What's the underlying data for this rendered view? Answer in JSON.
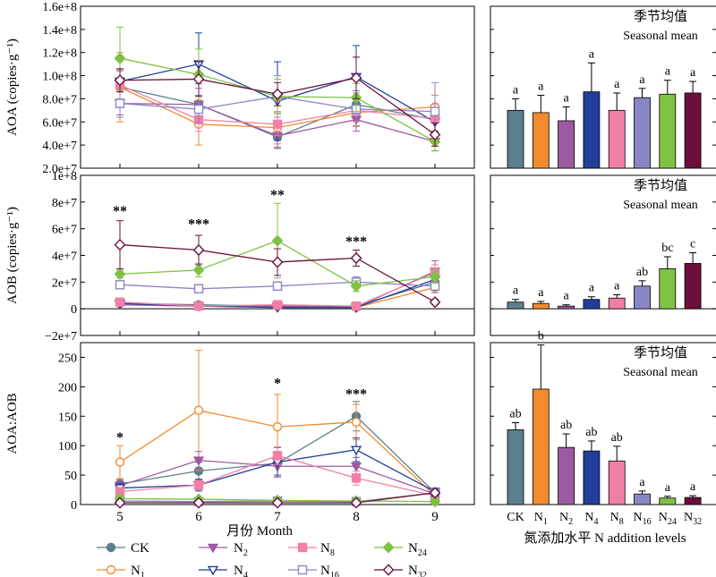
{
  "figure": {
    "x_title": "月份 Month",
    "bar_x_title": "氮添加水平 N addition levels",
    "panel_header_cn": "季节均值",
    "panel_header_en": "Seasonal mean"
  },
  "treatments": [
    {
      "key": "CK",
      "label": "CK",
      "sub": "",
      "color": "#5b7f8c",
      "marker": "circle",
      "filled": true
    },
    {
      "key": "N1",
      "label": "N",
      "sub": "1",
      "color": "#f28a2e",
      "marker": "circle",
      "filled": false
    },
    {
      "key": "N2",
      "label": "N",
      "sub": "2",
      "color": "#9e5aa0",
      "marker": "tri-down",
      "filled": true
    },
    {
      "key": "N4",
      "label": "N",
      "sub": "4",
      "color": "#1f3f9a",
      "marker": "tri-down",
      "filled": false
    },
    {
      "key": "N8",
      "label": "N",
      "sub": "8",
      "color": "#f27fa5",
      "marker": "square",
      "filled": true
    },
    {
      "key": "N16",
      "label": "N",
      "sub": "16",
      "color": "#8a86c6",
      "marker": "square",
      "filled": false
    },
    {
      "key": "N24",
      "label": "N",
      "sub": "24",
      "color": "#7fc241",
      "marker": "diamond",
      "filled": true
    },
    {
      "key": "N32",
      "label": "N",
      "sub": "32",
      "color": "#6b0f3c",
      "marker": "diamond",
      "filled": false
    }
  ],
  "chart_data": [
    {
      "type": "line",
      "panel": "AOA",
      "ylabel": "AOA (copies·g⁻¹)",
      "x": [
        5,
        6,
        7,
        8,
        9
      ],
      "xlim": [
        4.5,
        9.5
      ],
      "ylim": [
        20000000,
        160000000
      ],
      "yticks": [
        20000000,
        40000000,
        60000000,
        80000000,
        100000000,
        120000000,
        140000000,
        160000000
      ],
      "ytick_labels": [
        "2.0e+7",
        "4.0e+7",
        "6.0e+7",
        "8.0e+7",
        "1.0e+8",
        "1.2e+8",
        "1.4e+8",
        "1.6e+8"
      ],
      "series": [
        {
          "name": "CK",
          "values": [
            90000000,
            75000000,
            47000000,
            75000000,
            62000000
          ],
          "err": [
            15000000,
            18000000,
            10000000,
            12000000,
            10000000
          ]
        },
        {
          "name": "N1",
          "values": [
            90000000,
            58000000,
            55000000,
            68000000,
            73000000
          ],
          "err": [
            30000000,
            18000000,
            14000000,
            12000000,
            10000000
          ]
        },
        {
          "name": "N2",
          "values": [
            76000000,
            75000000,
            48000000,
            62000000,
            43000000
          ],
          "err": [
            10000000,
            14000000,
            10000000,
            10000000,
            8000000
          ]
        },
        {
          "name": "N4",
          "values": [
            95000000,
            110000000,
            78000000,
            99000000,
            60000000
          ],
          "err": [
            18000000,
            27000000,
            34000000,
            27000000,
            10000000
          ]
        },
        {
          "name": "N8",
          "values": [
            92000000,
            62000000,
            58000000,
            70000000,
            63000000
          ],
          "err": [
            12000000,
            10000000,
            10000000,
            10000000,
            12000000
          ]
        },
        {
          "name": "N16",
          "values": [
            76000000,
            71000000,
            82000000,
            71000000,
            69000000
          ],
          "err": [
            12000000,
            12000000,
            18000000,
            14000000,
            25000000
          ]
        },
        {
          "name": "N24",
          "values": [
            115000000,
            101000000,
            82000000,
            81000000,
            43000000
          ],
          "err": [
            27000000,
            22000000,
            15000000,
            12000000,
            8000000
          ]
        },
        {
          "name": "N32",
          "values": [
            96000000,
            97000000,
            84000000,
            98000000,
            49000000
          ],
          "err": [
            10000000,
            15000000,
            10000000,
            18000000,
            10000000
          ]
        }
      ],
      "annotations": []
    },
    {
      "type": "line",
      "panel": "AOB",
      "ylabel": "AOB (copies·g⁻¹)",
      "x": [
        5,
        6,
        7,
        8,
        9
      ],
      "xlim": [
        4.5,
        9.5
      ],
      "ylim": [
        -20000000,
        100000000
      ],
      "yticks": [
        -20000000,
        0,
        20000000,
        40000000,
        60000000,
        80000000,
        100000000
      ],
      "ytick_labels": [
        "−2e+7",
        "0",
        "2e+7",
        "4e+7",
        "6e+7",
        "8e+7",
        "1e+8"
      ],
      "series": [
        {
          "name": "CK",
          "values": [
            4000000,
            3000000,
            2000000,
            2000000,
            20000000
          ],
          "err": [
            1000000,
            1000000,
            1000000,
            1000000,
            4000000
          ]
        },
        {
          "name": "N1",
          "values": [
            4000000,
            2000000,
            2000000,
            1000000,
            16000000
          ],
          "err": [
            1000000,
            1000000,
            1000000,
            1000000,
            4000000
          ]
        },
        {
          "name": "N2",
          "values": [
            3000000,
            2000000,
            2000000,
            1000000,
            28000000
          ],
          "err": [
            1000000,
            1000000,
            1000000,
            1000000,
            8000000
          ]
        },
        {
          "name": "N4",
          "values": [
            4000000,
            2000000,
            1000000,
            1000000,
            22000000
          ],
          "err": [
            1000000,
            1000000,
            1000000,
            1000000,
            6000000
          ]
        },
        {
          "name": "N8",
          "values": [
            5000000,
            2000000,
            3000000,
            2000000,
            27000000
          ],
          "err": [
            1000000,
            1000000,
            1000000,
            1000000,
            6000000
          ]
        },
        {
          "name": "N16",
          "values": [
            18000000,
            15000000,
            17000000,
            20000000,
            17000000
          ],
          "err": [
            3000000,
            3000000,
            3000000,
            4000000,
            5000000
          ]
        },
        {
          "name": "N24",
          "values": [
            26000000,
            29000000,
            51000000,
            17000000,
            24000000
          ],
          "err": [
            3000000,
            5000000,
            28000000,
            4000000,
            5000000
          ]
        },
        {
          "name": "N32",
          "values": [
            48000000,
            44000000,
            35000000,
            38000000,
            5000000
          ],
          "err": [
            18000000,
            11000000,
            10000000,
            6000000,
            2000000
          ]
        }
      ],
      "annotations": [
        {
          "x": 5,
          "text": "**",
          "y": 70000000
        },
        {
          "x": 6,
          "text": "***",
          "y": 60000000
        },
        {
          "x": 7,
          "text": "**",
          "y": 82000000
        },
        {
          "x": 8,
          "text": "***",
          "y": 47000000
        }
      ]
    },
    {
      "type": "line",
      "panel": "AOA:AOB",
      "ylabel": "AOA:AOB",
      "x": [
        5,
        6,
        7,
        8,
        9
      ],
      "xlim": [
        4.5,
        9.5
      ],
      "ylim": [
        0,
        275
      ],
      "yticks": [
        0,
        50,
        100,
        150,
        200,
        250
      ],
      "ytick_labels": [
        "0",
        "50",
        "100",
        "150",
        "200",
        "250"
      ],
      "series": [
        {
          "name": "CK",
          "values": [
            35,
            57,
            70,
            150,
            20
          ],
          "err": [
            8,
            15,
            20,
            25,
            5
          ]
        },
        {
          "name": "N1",
          "values": [
            72,
            160,
            132,
            140,
            15
          ],
          "err": [
            28,
            102,
            55,
            30,
            5
          ]
        },
        {
          "name": "N2",
          "values": [
            32,
            75,
            65,
            65,
            18
          ],
          "err": [
            8,
            15,
            15,
            15,
            5
          ]
        },
        {
          "name": "N4",
          "values": [
            28,
            33,
            72,
            93,
            22
          ],
          "err": [
            8,
            10,
            25,
            20,
            6
          ]
        },
        {
          "name": "N8",
          "values": [
            22,
            33,
            83,
            45,
            15
          ],
          "err": [
            6,
            8,
            15,
            12,
            5
          ]
        },
        {
          "name": "N16",
          "values": [
            6,
            5,
            6,
            5,
            20
          ],
          "err": [
            2,
            2,
            2,
            2,
            5
          ]
        },
        {
          "name": "N24",
          "values": [
            10,
            9,
            7,
            6,
            5
          ],
          "err": [
            2,
            2,
            2,
            2,
            2
          ]
        },
        {
          "name": "N32",
          "values": [
            3,
            3,
            3,
            3,
            20
          ],
          "err": [
            1,
            1,
            1,
            1,
            5
          ]
        }
      ],
      "annotations": [
        {
          "x": 5,
          "text": "*",
          "y": 106
        },
        {
          "x": 7,
          "text": "*",
          "y": 198
        },
        {
          "x": 8,
          "text": "***",
          "y": 180
        }
      ]
    },
    {
      "type": "bar",
      "panel": "AOA seasonal mean",
      "categories": [
        "CK",
        "N1",
        "N2",
        "N4",
        "N8",
        "N16",
        "N24",
        "N32"
      ],
      "values": [
        70000000,
        68000000,
        61000000,
        86000000,
        70000000,
        81000000,
        84000000,
        85000000
      ],
      "err": [
        10000000,
        15000000,
        12000000,
        25000000,
        15000000,
        8000000,
        12000000,
        10000000
      ],
      "letters": [
        "a",
        "a",
        "a",
        "a",
        "a",
        "a",
        "a",
        "a"
      ],
      "ylim": [
        20000000,
        160000000
      ]
    },
    {
      "type": "bar",
      "panel": "AOB seasonal mean",
      "categories": [
        "CK",
        "N1",
        "N2",
        "N4",
        "N8",
        "N16",
        "N24",
        "N32"
      ],
      "values": [
        5000000,
        4000000,
        2000000,
        7000000,
        8000000,
        17000000,
        30000000,
        34000000
      ],
      "err": [
        2000000,
        1500000,
        1000000,
        2000000,
        2500000,
        4000000,
        9000000,
        8000000
      ],
      "letters": [
        "a",
        "a",
        "a",
        "a",
        "a",
        "ab",
        "bc",
        "c"
      ],
      "ylim": [
        -20000000,
        100000000
      ]
    },
    {
      "type": "bar",
      "panel": "AOA:AOB seasonal mean",
      "categories": [
        "CK",
        "N1",
        "N2",
        "N4",
        "N8",
        "N16",
        "N24",
        "N32"
      ],
      "values": [
        127,
        196,
        97,
        91,
        74,
        18,
        11,
        12
      ],
      "err": [
        12,
        75,
        23,
        17,
        25,
        5,
        3,
        3
      ],
      "letters": [
        "ab",
        "b",
        "ab",
        "ab",
        "ab",
        "a",
        "a",
        "a"
      ],
      "ylim": [
        0,
        275
      ]
    }
  ]
}
